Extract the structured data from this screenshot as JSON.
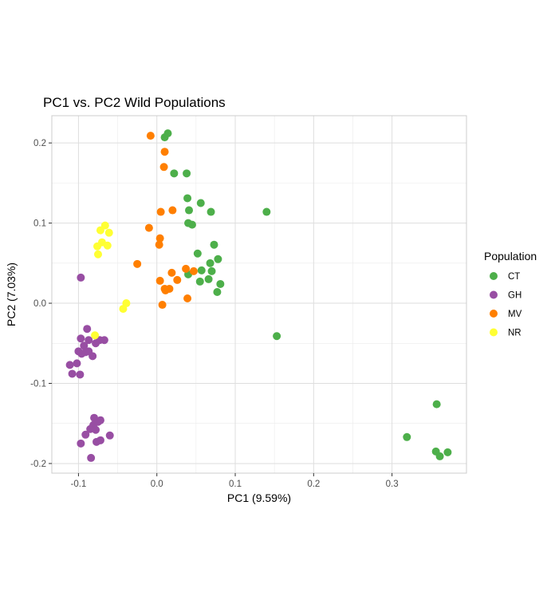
{
  "chart_data": {
    "type": "scatter",
    "title": "PC1 vs. PC2 Wild Populations",
    "xlabel": "PC1 (9.59%)",
    "ylabel": "PC2 (7.03%)",
    "xlim": [
      -0.134,
      0.395
    ],
    "ylim": [
      -0.212,
      0.234
    ],
    "xticks": [
      -0.1,
      0.0,
      0.1,
      0.2,
      0.3
    ],
    "xtick_labels": [
      "-0.1",
      "0.0",
      "0.1",
      "0.2",
      "0.3"
    ],
    "yticks": [
      -0.2,
      -0.1,
      0.0,
      0.1,
      0.2
    ],
    "ytick_labels": [
      "-0.2",
      "-0.1",
      "0.0",
      "0.1",
      "0.2"
    ],
    "grid": true,
    "legend": {
      "title": "Population",
      "placement": "right"
    },
    "series": [
      {
        "name": "CT",
        "color": "#4daf4a",
        "points": [
          [
            0.01,
            0.207
          ],
          [
            0.014,
            0.212
          ],
          [
            0.022,
            0.162
          ],
          [
            0.038,
            0.162
          ],
          [
            0.039,
            0.131
          ],
          [
            0.041,
            0.116
          ],
          [
            0.056,
            0.125
          ],
          [
            0.069,
            0.114
          ],
          [
            0.04,
            0.1
          ],
          [
            0.045,
            0.098
          ],
          [
            0.14,
            0.114
          ],
          [
            0.073,
            0.073
          ],
          [
            0.052,
            0.062
          ],
          [
            0.068,
            0.05
          ],
          [
            0.078,
            0.055
          ],
          [
            0.057,
            0.041
          ],
          [
            0.07,
            0.04
          ],
          [
            0.04,
            0.036
          ],
          [
            0.066,
            0.03
          ],
          [
            0.081,
            0.024
          ],
          [
            0.055,
            0.027
          ],
          [
            0.077,
            0.014
          ],
          [
            0.153,
            -0.041
          ],
          [
            0.319,
            -0.167
          ],
          [
            0.357,
            -0.126
          ],
          [
            0.356,
            -0.185
          ],
          [
            0.361,
            -0.191
          ],
          [
            0.371,
            -0.186
          ]
        ]
      },
      {
        "name": "GH",
        "color": "#984ea3",
        "points": [
          [
            -0.097,
            0.032
          ],
          [
            -0.089,
            -0.032
          ],
          [
            -0.097,
            -0.044
          ],
          [
            -0.087,
            -0.046
          ],
          [
            -0.093,
            -0.053
          ],
          [
            -0.073,
            -0.046
          ],
          [
            -0.067,
            -0.046
          ],
          [
            -0.078,
            -0.05
          ],
          [
            -0.1,
            -0.06
          ],
          [
            -0.096,
            -0.063
          ],
          [
            -0.091,
            -0.061
          ],
          [
            -0.082,
            -0.066
          ],
          [
            -0.087,
            -0.06
          ],
          [
            -0.102,
            -0.075
          ],
          [
            -0.111,
            -0.077
          ],
          [
            -0.108,
            -0.088
          ],
          [
            -0.098,
            -0.089
          ],
          [
            -0.08,
            -0.143
          ],
          [
            -0.075,
            -0.148
          ],
          [
            -0.072,
            -0.146
          ],
          [
            -0.081,
            -0.152
          ],
          [
            -0.085,
            -0.157
          ],
          [
            -0.078,
            -0.158
          ],
          [
            -0.091,
            -0.164
          ],
          [
            -0.06,
            -0.165
          ],
          [
            -0.072,
            -0.171
          ],
          [
            -0.077,
            -0.173
          ],
          [
            -0.097,
            -0.175
          ],
          [
            -0.084,
            -0.193
          ]
        ]
      },
      {
        "name": "MV",
        "color": "#ff7f00",
        "points": [
          [
            -0.008,
            0.209
          ],
          [
            0.01,
            0.189
          ],
          [
            0.009,
            0.17
          ],
          [
            0.02,
            0.116
          ],
          [
            0.005,
            0.114
          ],
          [
            -0.01,
            0.094
          ],
          [
            0.004,
            0.081
          ],
          [
            0.003,
            0.073
          ],
          [
            -0.025,
            0.049
          ],
          [
            0.037,
            0.043
          ],
          [
            0.047,
            0.04
          ],
          [
            0.019,
            0.038
          ],
          [
            0.004,
            0.028
          ],
          [
            0.026,
            0.029
          ],
          [
            0.016,
            0.018
          ],
          [
            0.011,
            0.016
          ],
          [
            0.01,
            0.018
          ],
          [
            0.039,
            0.006
          ],
          [
            0.007,
            -0.002
          ]
        ]
      },
      {
        "name": "NR",
        "color": "#ffff33",
        "points": [
          [
            -0.066,
            0.097
          ],
          [
            -0.072,
            0.091
          ],
          [
            -0.061,
            0.088
          ],
          [
            -0.07,
            0.076
          ],
          [
            -0.063,
            0.072
          ],
          [
            -0.076,
            0.071
          ],
          [
            -0.075,
            0.061
          ],
          [
            -0.039,
            0.0
          ],
          [
            -0.043,
            -0.007
          ],
          [
            -0.079,
            -0.04
          ]
        ]
      }
    ]
  }
}
